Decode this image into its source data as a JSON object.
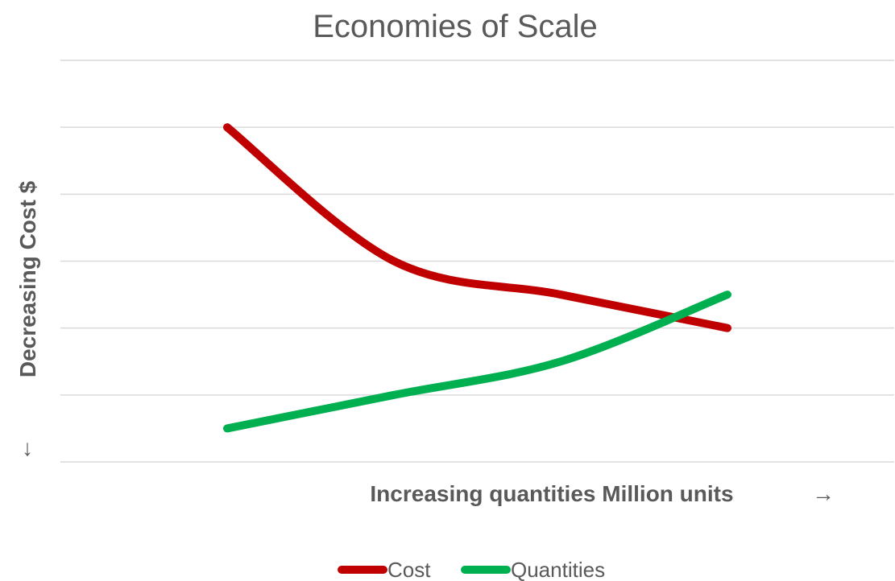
{
  "chart_data": {
    "type": "line",
    "title": "Economies of Scale",
    "xlabel": "Increasing quantities Million units",
    "ylabel": "Decreasing Cost  $",
    "xlabel_arrow": "→",
    "ylabel_arrow": "↓",
    "x": [
      1,
      2,
      3,
      4
    ],
    "xlim": [
      0,
      5
    ],
    "ylim": [
      0,
      6
    ],
    "grid": true,
    "legend_position": "bottom",
    "series": [
      {
        "name": "Cost",
        "color": "#c00000",
        "values": [
          5,
          3,
          2.5,
          2
        ]
      },
      {
        "name": "Quantities",
        "color": "#00b050",
        "values": [
          0.5,
          1,
          1.5,
          2.5
        ]
      }
    ]
  }
}
